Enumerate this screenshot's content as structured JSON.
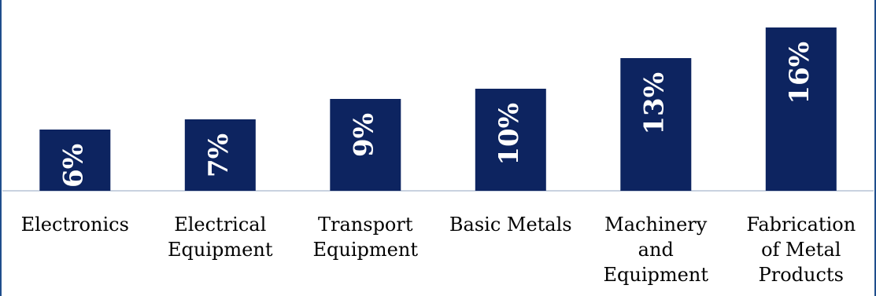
{
  "chart_data": {
    "type": "bar",
    "categories": [
      "Electronics",
      "Electrical Equipment",
      "Transport Equipment",
      "Basic Metals",
      "Machinery and Equipment",
      "Fabrication of Metal Products"
    ],
    "category_lines": [
      [
        "Electronics"
      ],
      [
        "Electrical",
        "Equipment"
      ],
      [
        "Transport",
        "Equipment"
      ],
      [
        "Basic Metals"
      ],
      [
        "Machinery",
        "and",
        "Equipment"
      ],
      [
        "Fabrication",
        "of Metal",
        "Products"
      ]
    ],
    "values": [
      6,
      7,
      9,
      10,
      13,
      16
    ],
    "data_labels": [
      "6%",
      "7%",
      "9%",
      "10%",
      "13%",
      "16%"
    ],
    "ylim": [
      0,
      18
    ],
    "title": "",
    "xlabel": "",
    "ylabel": "",
    "grid": false,
    "bar_color": "#0d2460",
    "axis_color": "#b7c3d6",
    "border_color": "#1f4e8c"
  }
}
